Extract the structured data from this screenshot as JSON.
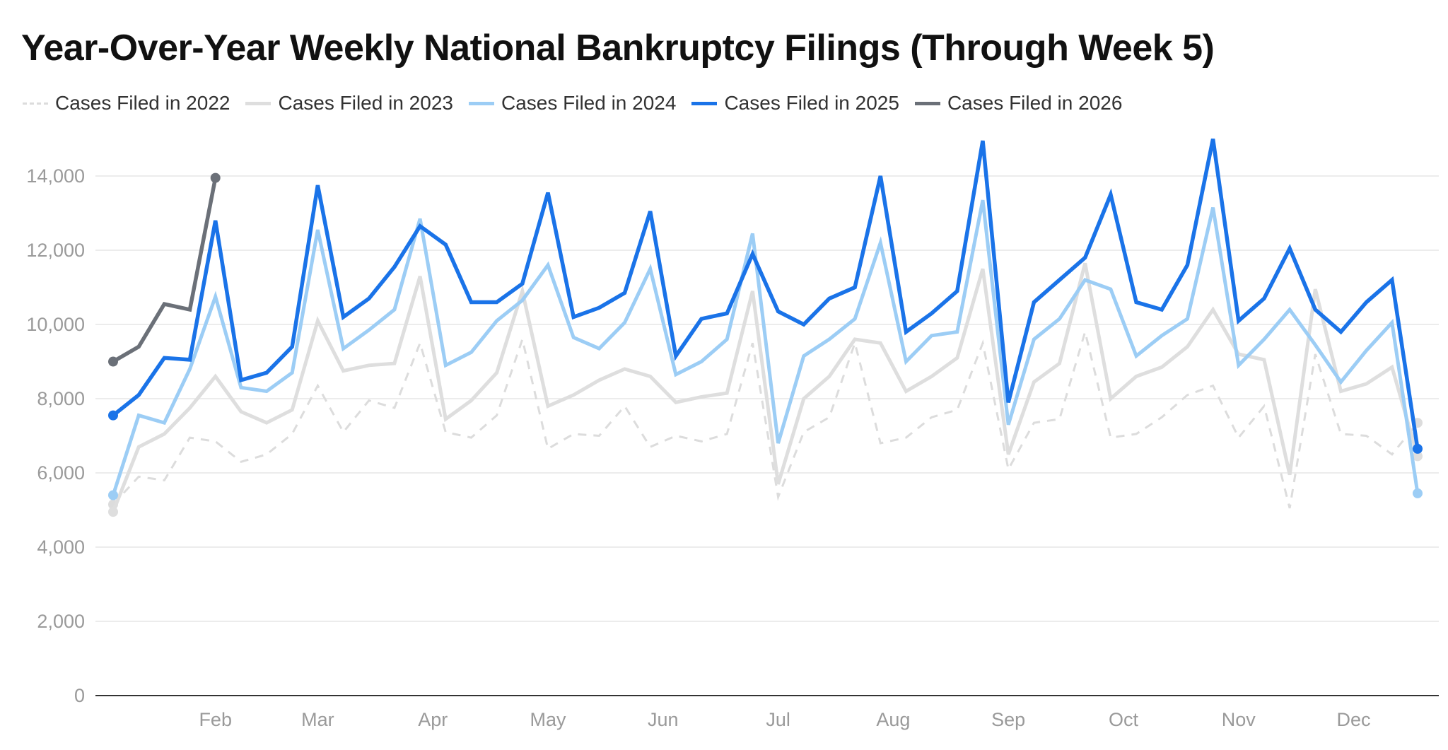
{
  "chart_data": {
    "type": "line",
    "title": "Year-Over-Year Weekly National Bankruptcy Filings (Through Week 5)",
    "xlabel": "",
    "ylabel": "",
    "ylim": [
      0,
      15000
    ],
    "yticks": [
      0,
      2000,
      4000,
      6000,
      8000,
      10000,
      12000,
      14000
    ],
    "ytick_labels": [
      "0",
      "2,000",
      "4,000",
      "6,000",
      "8,000",
      "10,000",
      "12,000",
      "14,000"
    ],
    "x_range": [
      1,
      52
    ],
    "month_ticks": [
      {
        "label": "Feb",
        "week": 5
      },
      {
        "label": "Mar",
        "week": 9
      },
      {
        "label": "Apr",
        "week": 13.5
      },
      {
        "label": "May",
        "week": 18
      },
      {
        "label": "Jun",
        "week": 22.5
      },
      {
        "label": "Jul",
        "week": 27
      },
      {
        "label": "Aug",
        "week": 31.5
      },
      {
        "label": "Sep",
        "week": 36
      },
      {
        "label": "Oct",
        "week": 40.5
      },
      {
        "label": "Nov",
        "week": 45
      },
      {
        "label": "Dec",
        "week": 49.5
      }
    ],
    "grid": true,
    "legend_position": "top-left",
    "series": [
      {
        "name": "Cases Filed in 2022",
        "color": "#dcdcdc",
        "style": "dashed",
        "values": [
          5150,
          5900,
          5800,
          6950,
          6850,
          6300,
          6500,
          7050,
          8350,
          7100,
          7950,
          7750,
          9500,
          7100,
          6950,
          7550,
          9600,
          6650,
          7050,
          7000,
          7800,
          6700,
          7000,
          6850,
          7050,
          9500,
          5350,
          7100,
          7500,
          9500,
          6800,
          6950,
          7500,
          7700,
          9500,
          6100,
          7350,
          7450,
          9800,
          6950,
          7050,
          7500,
          8100,
          8350,
          6950,
          7800,
          5050,
          9200,
          7050,
          7000,
          6500,
          7350
        ]
      },
      {
        "name": "Cases Filed in 2023",
        "color": "#dedede",
        "style": "solid",
        "values": [
          4950,
          6700,
          7050,
          7750,
          8600,
          7650,
          7350,
          7700,
          10100,
          8750,
          8900,
          8950,
          11300,
          7450,
          7950,
          8700,
          10900,
          7800,
          8100,
          8500,
          8800,
          8600,
          7900,
          8050,
          8150,
          10900,
          5700,
          8000,
          8600,
          9600,
          9500,
          8200,
          8600,
          9100,
          11500,
          6500,
          8450,
          8950,
          11650,
          8000,
          8600,
          8850,
          9400,
          10400,
          9200,
          9050,
          5950,
          10950,
          8200,
          8400,
          8850,
          6450
        ]
      },
      {
        "name": "Cases Filed in 2024",
        "color": "#9ccdf5",
        "style": "solid",
        "values": [
          5400,
          7550,
          7350,
          8800,
          10750,
          8300,
          8200,
          8700,
          12550,
          9350,
          9850,
          10400,
          12850,
          8900,
          9250,
          10100,
          10650,
          11600,
          9650,
          9350,
          10050,
          11500,
          8650,
          9000,
          9600,
          12450,
          6800,
          9150,
          9600,
          10150,
          12200,
          9000,
          9700,
          9800,
          13350,
          7300,
          9600,
          10150,
          11200,
          10950,
          9150,
          9700,
          10150,
          13150,
          8900,
          9600,
          10400,
          9450,
          8450,
          9300,
          10050,
          5450
        ]
      },
      {
        "name": "Cases Filed in 2025",
        "color": "#1a73e8",
        "style": "solid",
        "values": [
          7550,
          8100,
          9100,
          9050,
          12800,
          8500,
          8700,
          9400,
          13750,
          10200,
          10700,
          11550,
          12650,
          12150,
          10600,
          10600,
          11100,
          13550,
          10200,
          10450,
          10850,
          13050,
          9150,
          10150,
          10300,
          11900,
          10350,
          10000,
          10700,
          11000,
          14000,
          9800,
          10300,
          10900,
          14950,
          7900,
          10600,
          11200,
          11800,
          13500,
          10600,
          10400,
          11600,
          15000,
          10100,
          10700,
          12050,
          10400,
          9800,
          10600,
          11200,
          6650
        ]
      },
      {
        "name": "Cases Filed in 2026",
        "color": "#6b7078",
        "style": "solid",
        "values": [
          9000,
          9400,
          10550,
          10400,
          13950
        ]
      }
    ]
  }
}
